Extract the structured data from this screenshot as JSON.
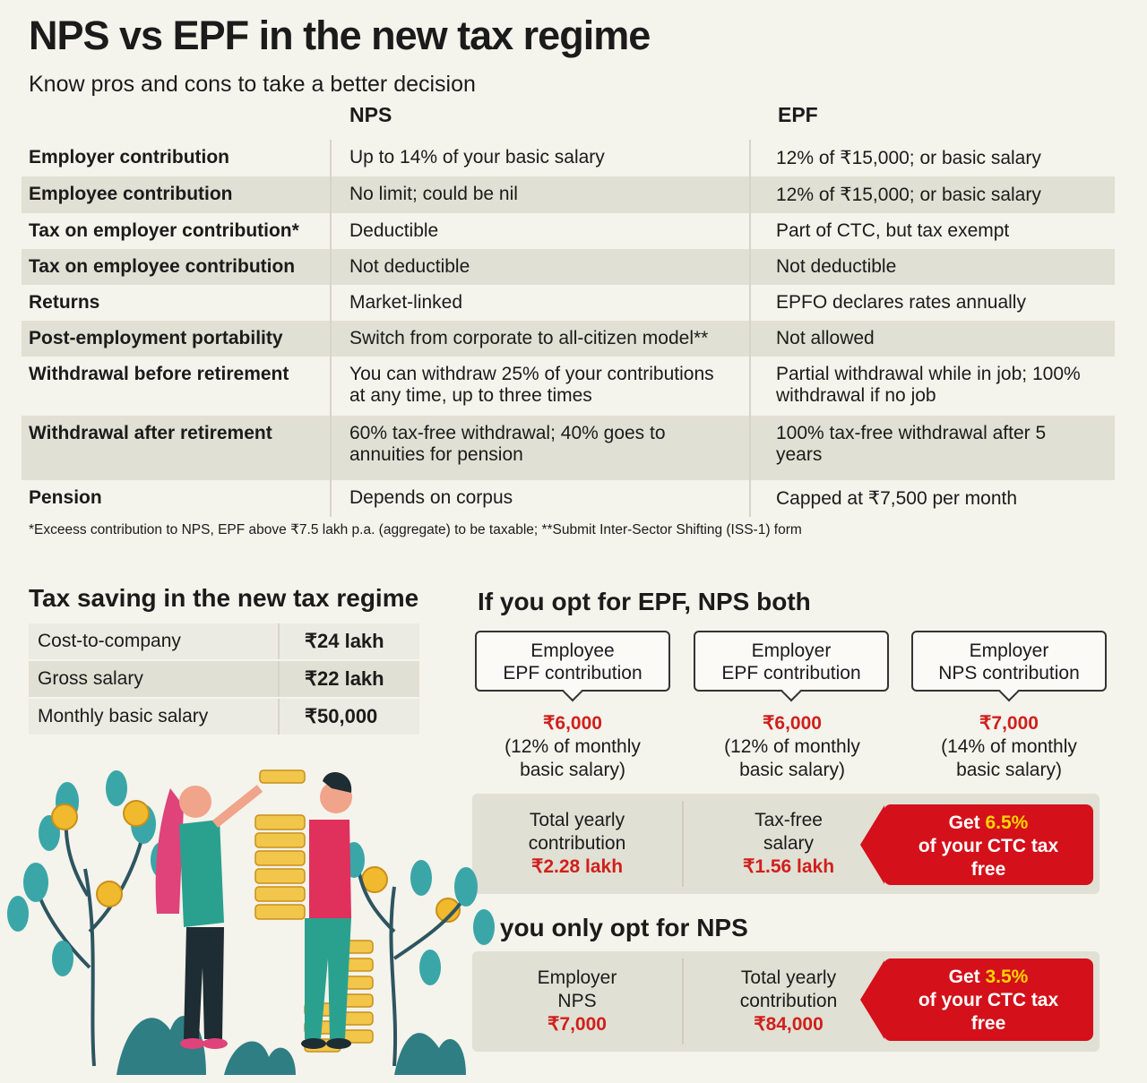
{
  "header": {
    "title": "NPS vs EPF in the new tax regime",
    "subtitle": "Know pros and cons to take a better decision"
  },
  "comparison": {
    "col_nps": "NPS",
    "col_epf": "EPF",
    "rows": [
      {
        "label": "Employer contribution",
        "nps": "Up to 14% of your basic salary",
        "epf": "12% of ₹15,000; or basic salary"
      },
      {
        "label": "Employee contribution",
        "nps": "No limit; could be nil",
        "epf": "12% of ₹15,000; or basic salary"
      },
      {
        "label": "Tax on employer contribution*",
        "nps": "Deductible",
        "epf": "Part of CTC, but tax exempt"
      },
      {
        "label": "Tax on employee contribution",
        "nps": "Not deductible",
        "epf": "Not deductible"
      },
      {
        "label": "Returns",
        "nps": "Market-linked",
        "epf": "EPFO declares rates annually"
      },
      {
        "label": "Post-employment portability",
        "nps": "Switch from corporate to all-citizen model**",
        "epf": "Not allowed"
      },
      {
        "label": "Withdrawal before retirement",
        "nps": "You can withdraw 25% of your contributions at any time, up to three times",
        "epf": "Partial withdrawal while in job; 100% withdrawal if no job"
      },
      {
        "label": "Withdrawal after retirement",
        "nps": "60% tax-free withdrawal; 40% goes to annuities for pension",
        "epf": "100% tax-free withdrawal after 5 years"
      },
      {
        "label": "Pension",
        "nps": "Depends on corpus",
        "epf": "Capped at ₹7,500 per month"
      }
    ],
    "footnote": "*Exceess contribution to NPS, EPF above ₹7.5 lakh p.a. (aggregate) to be taxable; **Submit Inter-Sector Shifting (ISS-1) form"
  },
  "tax_saving": {
    "title": "Tax saving in the new tax regime",
    "rows": [
      {
        "label": "Cost-to-company",
        "value": "₹24 lakh"
      },
      {
        "label": "Gross salary",
        "value": "₹22 lakh"
      },
      {
        "label": "Monthly basic salary",
        "value": "₹50,000"
      }
    ]
  },
  "both": {
    "title": "If you opt for EPF, NPS both",
    "cards": [
      {
        "line1": "Employee",
        "line2": "EPF contribution",
        "amount": "₹6,000",
        "note1": "(12% of monthly",
        "note2": "basic salary)"
      },
      {
        "line1": "Employer",
        "line2": "EPF contribution",
        "amount": "₹6,000",
        "note1": "(12% of monthly",
        "note2": "basic salary)"
      },
      {
        "line1": "Employer",
        "line2": "NPS contribution",
        "amount": "₹7,000",
        "note1": "(14% of monthly",
        "note2": "basic salary)"
      }
    ],
    "summary": [
      {
        "line1": "Total yearly",
        "line2": "contribution",
        "value": "₹2.28 lakh"
      },
      {
        "line1": "Tax-free",
        "line2": "salary",
        "value": "₹1.56 lakh"
      }
    ],
    "get": {
      "prefix": "Get ",
      "pct": "6.5%",
      "line2": "of your CTC tax",
      "line3": "free"
    }
  },
  "only_nps": {
    "title": "If you only opt for NPS",
    "summary": [
      {
        "line1": "Employer",
        "line2": "NPS",
        "value": "₹7,000"
      },
      {
        "line1": "Total yearly",
        "line2": "contribution",
        "value": "₹84,000"
      }
    ],
    "get": {
      "prefix": "Get ",
      "pct": "3.5%",
      "line2": "of your CTC tax",
      "line3": "free"
    }
  },
  "colors": {
    "accent_red": "#d4101a",
    "highlight_yellow": "#ffd400",
    "shade": "#e1e0d4",
    "background": "#f4f3ec"
  }
}
